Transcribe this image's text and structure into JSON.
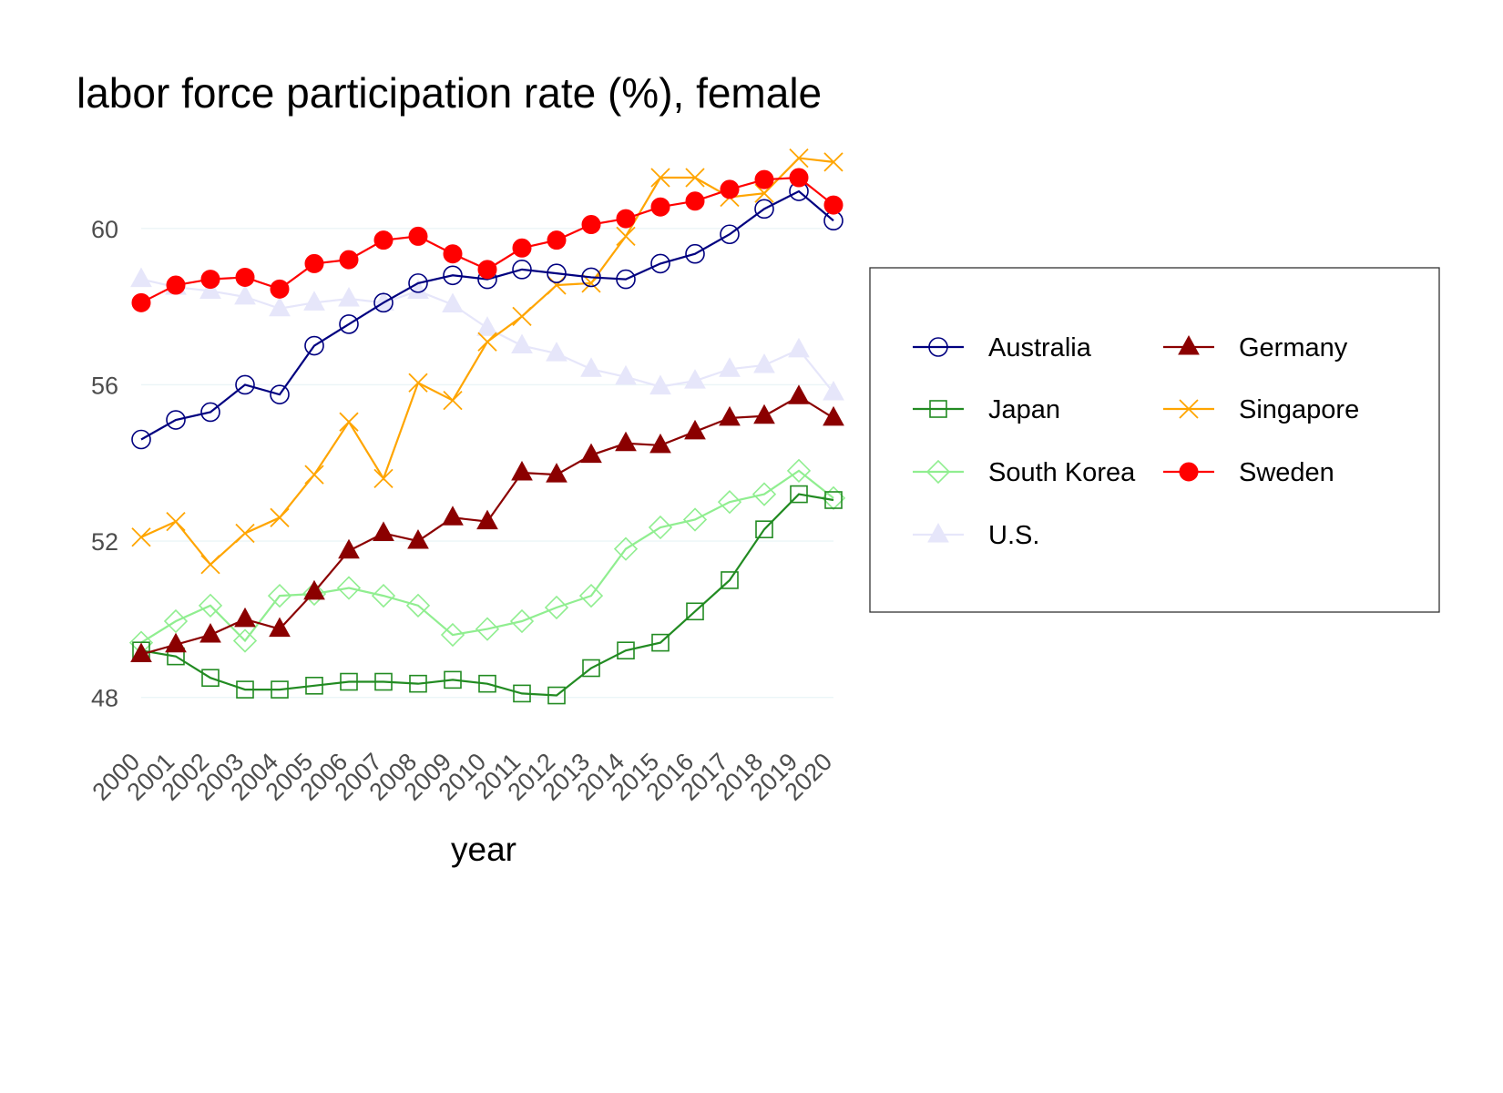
{
  "chart_data": {
    "type": "line",
    "title": "labor force participation rate (%), female",
    "xlabel": "year",
    "ylabel": "",
    "x": [
      2000,
      2001,
      2002,
      2003,
      2004,
      2005,
      2006,
      2007,
      2008,
      2009,
      2010,
      2011,
      2012,
      2013,
      2014,
      2015,
      2016,
      2017,
      2018,
      2019,
      2020
    ],
    "x_tick_labels": [
      "2000",
      "2001",
      "2002",
      "2003",
      "2004",
      "2005",
      "2006",
      "2007",
      "2008",
      "2009",
      "2010",
      "2011",
      "2012",
      "2013",
      "2014",
      "2015",
      "2016",
      "2017",
      "2018",
      "2019",
      "2020"
    ],
    "y_ticks": [
      48,
      52,
      56,
      60
    ],
    "y_tick_labels": [
      "48",
      "52",
      "56",
      "60"
    ],
    "ylim": [
      47.2,
      62.0
    ],
    "grid": true,
    "legend_position": "right",
    "series": [
      {
        "name": "Australia",
        "color": "#000080",
        "marker": "circle-open",
        "values": [
          54.6,
          55.1,
          55.3,
          56.0,
          55.75,
          57.0,
          57.55,
          58.1,
          58.6,
          58.8,
          58.7,
          58.95,
          58.85,
          58.75,
          58.7,
          59.1,
          59.35,
          59.85,
          60.5,
          60.95,
          60.2
        ]
      },
      {
        "name": "Germany",
        "color": "#8b0000",
        "marker": "triangle-filled",
        "values": [
          49.1,
          49.35,
          49.6,
          50.0,
          49.75,
          50.7,
          51.75,
          52.2,
          52.0,
          52.6,
          52.5,
          53.75,
          53.7,
          54.2,
          54.5,
          54.45,
          54.8,
          55.15,
          55.2,
          55.7,
          55.15
        ]
      },
      {
        "name": "Japan",
        "color": "#228b22",
        "marker": "square-open",
        "values": [
          49.2,
          49.05,
          48.5,
          48.2,
          48.2,
          48.3,
          48.4,
          48.4,
          48.35,
          48.45,
          48.35,
          48.1,
          48.05,
          48.75,
          49.2,
          49.4,
          50.2,
          51.0,
          52.3,
          53.2,
          53.05
        ]
      },
      {
        "name": "Singapore",
        "color": "#ffa500",
        "marker": "x",
        "values": [
          52.1,
          52.5,
          51.4,
          52.2,
          52.6,
          53.7,
          55.05,
          53.6,
          56.05,
          55.6,
          57.1,
          57.75,
          58.55,
          58.6,
          59.8,
          61.3,
          61.3,
          60.8,
          60.9,
          61.8,
          61.7
        ]
      },
      {
        "name": "South Korea",
        "color": "#90ee90",
        "marker": "diamond-open",
        "values": [
          49.4,
          49.95,
          50.35,
          49.45,
          50.6,
          50.65,
          50.8,
          50.6,
          50.35,
          49.6,
          49.75,
          49.95,
          50.3,
          50.6,
          51.8,
          52.35,
          52.55,
          53.0,
          53.2,
          53.8,
          53.1
        ]
      },
      {
        "name": "Sweden",
        "color": "#ff0000",
        "marker": "circle-filled",
        "values": [
          58.1,
          58.55,
          58.7,
          58.75,
          58.45,
          59.1,
          59.2,
          59.7,
          59.8,
          59.35,
          58.95,
          59.5,
          59.7,
          60.1,
          60.25,
          60.55,
          60.7,
          61.0,
          61.25,
          61.3,
          60.6
        ]
      },
      {
        "name": "U.S.",
        "color": "#e6e6fa",
        "marker": "triangle-filled",
        "values": [
          58.7,
          58.5,
          58.4,
          58.25,
          57.95,
          58.1,
          58.2,
          58.1,
          58.4,
          58.05,
          57.45,
          57.0,
          56.8,
          56.4,
          56.2,
          55.95,
          56.1,
          56.4,
          56.5,
          56.9,
          55.8
        ]
      }
    ],
    "legend_order": [
      "Australia",
      "Germany",
      "Japan",
      "Singapore",
      "South Korea",
      "Sweden",
      "U.S."
    ]
  }
}
